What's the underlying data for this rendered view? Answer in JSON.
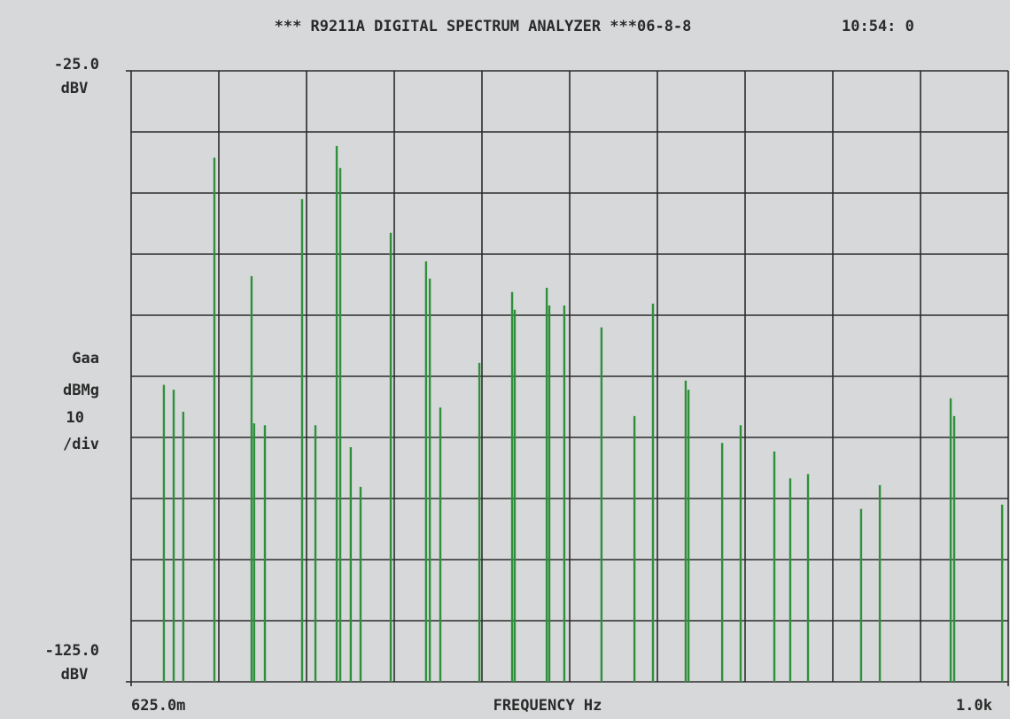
{
  "chart_data": {
    "type": "stem",
    "title": "*** R9211A DIGITAL SPECTRUM ANALYZER ***06-8-8",
    "time": "10:54: 0",
    "y_unit_top": "dBV",
    "y_unit_bottom": "dBV",
    "scale_labels": [
      "Gaa",
      "dBMg",
      "10",
      "/div"
    ],
    "x_label": "FREQUENCY Hz",
    "xlim": [
      625,
      1000
    ],
    "ylim": [
      -125,
      -25
    ],
    "xticks": [
      {
        "value": 625,
        "label": "625.0m"
      },
      {
        "value": 1000,
        "label": "1.0k"
      }
    ],
    "yticks": [
      {
        "value": -125,
        "label": "-125.0"
      },
      {
        "value": -25,
        "label": "-25.0"
      }
    ],
    "x_divisions": 10,
    "y_divisions": 10,
    "color": "#2f8f3c",
    "x": [
      639.0,
      643.2,
      647.3,
      660.6,
      676.5,
      677.6,
      682.2,
      698.1,
      703.8,
      712.9,
      714.4,
      718.9,
      723.1,
      736.0,
      751.1,
      752.7,
      757.2,
      773.9,
      787.9,
      789.0,
      802.7,
      803.8,
      810.2,
      826.1,
      840.2,
      848.1,
      862.1,
      863.3,
      877.7,
      885.6,
      900.0,
      906.8,
      914.4,
      937.1,
      945.1,
      975.4,
      976.9,
      997.4
    ],
    "values": [
      -76.4,
      -77.2,
      -80.8,
      -39.2,
      -58.6,
      -82.7,
      -83,
      -46,
      -83,
      -37.3,
      -40.9,
      -86.6,
      -93.1,
      -51.5,
      -56.2,
      -59,
      -80.1,
      -72.8,
      -61.2,
      -64.1,
      -60.5,
      -63.4,
      -63.4,
      -67,
      -81.5,
      -63.1,
      -75.7,
      -77.2,
      -85.9,
      -83,
      -87.3,
      -91.7,
      -91,
      -96.7,
      -92.8,
      -78.6,
      -81.5,
      -96
    ]
  }
}
